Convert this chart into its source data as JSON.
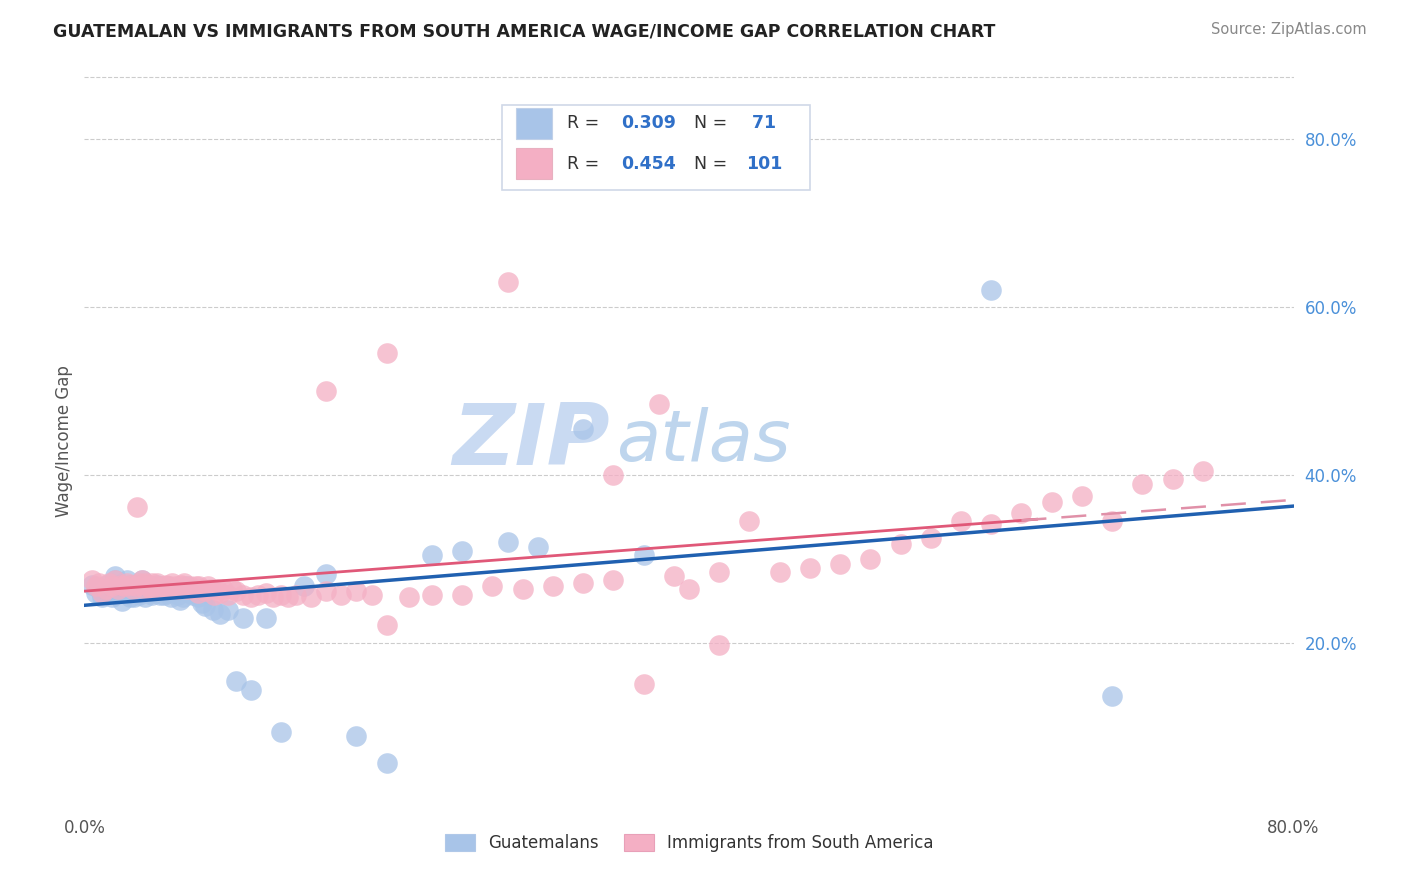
{
  "title": "GUATEMALAN VS IMMIGRANTS FROM SOUTH AMERICA WAGE/INCOME GAP CORRELATION CHART",
  "source": "Source: ZipAtlas.com",
  "ylabel": "Wage/Income Gap",
  "xmin": 0.0,
  "xmax": 0.8,
  "ymin": 0.0,
  "ymax": 0.88,
  "yticks_right": [
    0.2,
    0.4,
    0.6,
    0.8
  ],
  "ytick_labels_right": [
    "20.0%",
    "40.0%",
    "60.0%",
    "80.0%"
  ],
  "blue_R": 0.309,
  "blue_N": 71,
  "pink_R": 0.454,
  "pink_N": 101,
  "blue_marker_color": "#a8c4e8",
  "pink_marker_color": "#f4afc4",
  "blue_line_color": "#2060b0",
  "pink_line_color": "#e05878",
  "pink_dash_color": "#e090a8",
  "grid_color": "#cccccc",
  "watermark_zip_color": "#c0d4f0",
  "watermark_atlas_color": "#a8c8e8",
  "legend_border_color": "#d0d8e8",
  "blue_scatter_x": [
    0.005,
    0.008,
    0.01,
    0.012,
    0.015,
    0.016,
    0.018,
    0.02,
    0.02,
    0.022,
    0.023,
    0.025,
    0.025,
    0.026,
    0.028,
    0.03,
    0.03,
    0.03,
    0.032,
    0.033,
    0.035,
    0.035,
    0.036,
    0.038,
    0.038,
    0.04,
    0.04,
    0.042,
    0.043,
    0.045,
    0.045,
    0.047,
    0.048,
    0.05,
    0.05,
    0.052,
    0.053,
    0.055,
    0.055,
    0.057,
    0.058,
    0.06,
    0.062,
    0.063,
    0.065,
    0.068,
    0.07,
    0.072,
    0.075,
    0.078,
    0.08,
    0.085,
    0.09,
    0.095,
    0.1,
    0.105,
    0.11,
    0.12,
    0.13,
    0.145,
    0.16,
    0.18,
    0.2,
    0.23,
    0.25,
    0.28,
    0.3,
    0.33,
    0.37,
    0.6,
    0.68
  ],
  "blue_scatter_y": [
    0.27,
    0.26,
    0.265,
    0.255,
    0.27,
    0.26,
    0.255,
    0.275,
    0.28,
    0.265,
    0.27,
    0.26,
    0.25,
    0.265,
    0.275,
    0.265,
    0.255,
    0.27,
    0.26,
    0.255,
    0.265,
    0.27,
    0.258,
    0.265,
    0.275,
    0.262,
    0.255,
    0.268,
    0.26,
    0.265,
    0.258,
    0.26,
    0.27,
    0.258,
    0.265,
    0.262,
    0.258,
    0.26,
    0.268,
    0.255,
    0.265,
    0.262,
    0.258,
    0.252,
    0.255,
    0.268,
    0.26,
    0.258,
    0.255,
    0.248,
    0.245,
    0.24,
    0.235,
    0.24,
    0.155,
    0.23,
    0.145,
    0.23,
    0.095,
    0.268,
    0.282,
    0.09,
    0.058,
    0.305,
    0.31,
    0.32,
    0.315,
    0.455,
    0.305,
    0.62,
    0.138
  ],
  "pink_scatter_x": [
    0.005,
    0.008,
    0.01,
    0.012,
    0.014,
    0.016,
    0.018,
    0.02,
    0.022,
    0.024,
    0.026,
    0.028,
    0.03,
    0.032,
    0.034,
    0.035,
    0.036,
    0.038,
    0.04,
    0.04,
    0.042,
    0.044,
    0.045,
    0.046,
    0.048,
    0.05,
    0.052,
    0.054,
    0.055,
    0.056,
    0.058,
    0.06,
    0.062,
    0.064,
    0.065,
    0.066,
    0.068,
    0.07,
    0.072,
    0.074,
    0.075,
    0.076,
    0.078,
    0.08,
    0.082,
    0.084,
    0.086,
    0.088,
    0.09,
    0.092,
    0.095,
    0.098,
    0.1,
    0.105,
    0.11,
    0.115,
    0.12,
    0.125,
    0.13,
    0.135,
    0.14,
    0.15,
    0.16,
    0.17,
    0.18,
    0.19,
    0.2,
    0.215,
    0.23,
    0.25,
    0.27,
    0.29,
    0.31,
    0.33,
    0.35,
    0.37,
    0.39,
    0.4,
    0.42,
    0.44,
    0.46,
    0.48,
    0.5,
    0.52,
    0.54,
    0.56,
    0.58,
    0.6,
    0.62,
    0.64,
    0.66,
    0.68,
    0.7,
    0.72,
    0.74,
    0.38,
    0.16,
    0.2,
    0.28,
    0.35,
    0.42
  ],
  "pink_scatter_y": [
    0.275,
    0.268,
    0.272,
    0.26,
    0.265,
    0.272,
    0.268,
    0.275,
    0.265,
    0.27,
    0.268,
    0.272,
    0.27,
    0.265,
    0.268,
    0.362,
    0.272,
    0.275,
    0.265,
    0.272,
    0.268,
    0.265,
    0.272,
    0.268,
    0.272,
    0.265,
    0.268,
    0.27,
    0.265,
    0.268,
    0.272,
    0.268,
    0.265,
    0.27,
    0.268,
    0.272,
    0.265,
    0.268,
    0.265,
    0.268,
    0.26,
    0.268,
    0.265,
    0.262,
    0.268,
    0.265,
    0.258,
    0.265,
    0.26,
    0.265,
    0.258,
    0.265,
    0.262,
    0.258,
    0.255,
    0.258,
    0.26,
    0.255,
    0.258,
    0.255,
    0.258,
    0.255,
    0.262,
    0.258,
    0.262,
    0.258,
    0.222,
    0.255,
    0.258,
    0.258,
    0.268,
    0.265,
    0.268,
    0.272,
    0.275,
    0.152,
    0.28,
    0.265,
    0.285,
    0.345,
    0.285,
    0.29,
    0.295,
    0.3,
    0.318,
    0.325,
    0.345,
    0.342,
    0.355,
    0.368,
    0.375,
    0.345,
    0.39,
    0.395,
    0.405,
    0.485,
    0.5,
    0.545,
    0.63,
    0.4,
    0.198
  ]
}
